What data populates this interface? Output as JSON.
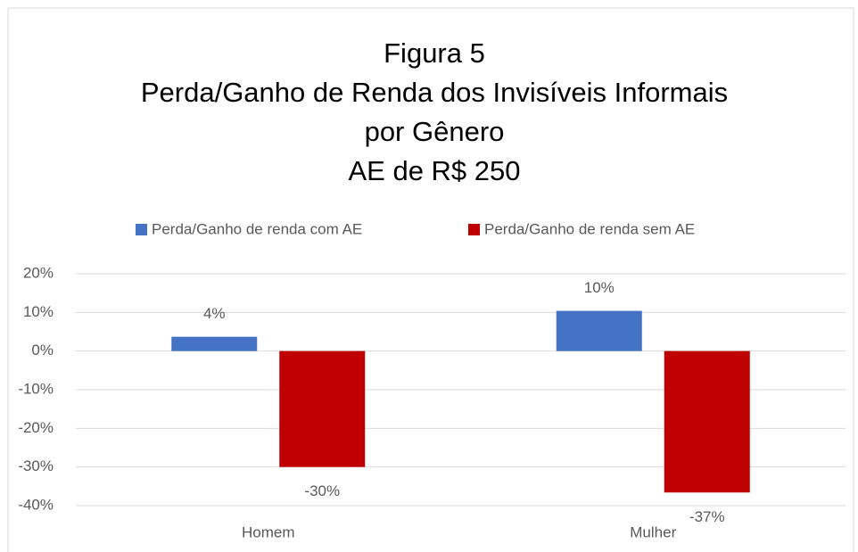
{
  "chart_data": {
    "type": "bar",
    "title": [
      "Figura  5",
      "Perda/Ganho de Renda dos Invisíveis Informais",
      "por Gênero",
      "AE de R$ 250"
    ],
    "categories": [
      "Homem",
      "Mulher"
    ],
    "series": [
      {
        "name": "Perda/Ganho de renda com AE",
        "color": "#4472c4",
        "values": [
          3.7,
          10.4
        ],
        "value_labels": [
          "4%",
          "10%"
        ]
      },
      {
        "name": "Perda/Ganho de renda sem AE",
        "color": "#c00000",
        "values": [
          -30,
          -36.6
        ],
        "value_labels": [
          "-30%",
          "-37%"
        ]
      }
    ],
    "ylim": [
      -40,
      20
    ],
    "yticks": [
      {
        "value": -40,
        "label": "-40%"
      },
      {
        "value": -30,
        "label": "-30%"
      },
      {
        "value": -20,
        "label": "-20%"
      },
      {
        "value": -10,
        "label": "-10%"
      },
      {
        "value": 0,
        "label": "0%"
      },
      {
        "value": 10,
        "label": "10%"
      },
      {
        "value": 20,
        "label": "20%"
      }
    ],
    "grid": true,
    "legend": "top"
  }
}
